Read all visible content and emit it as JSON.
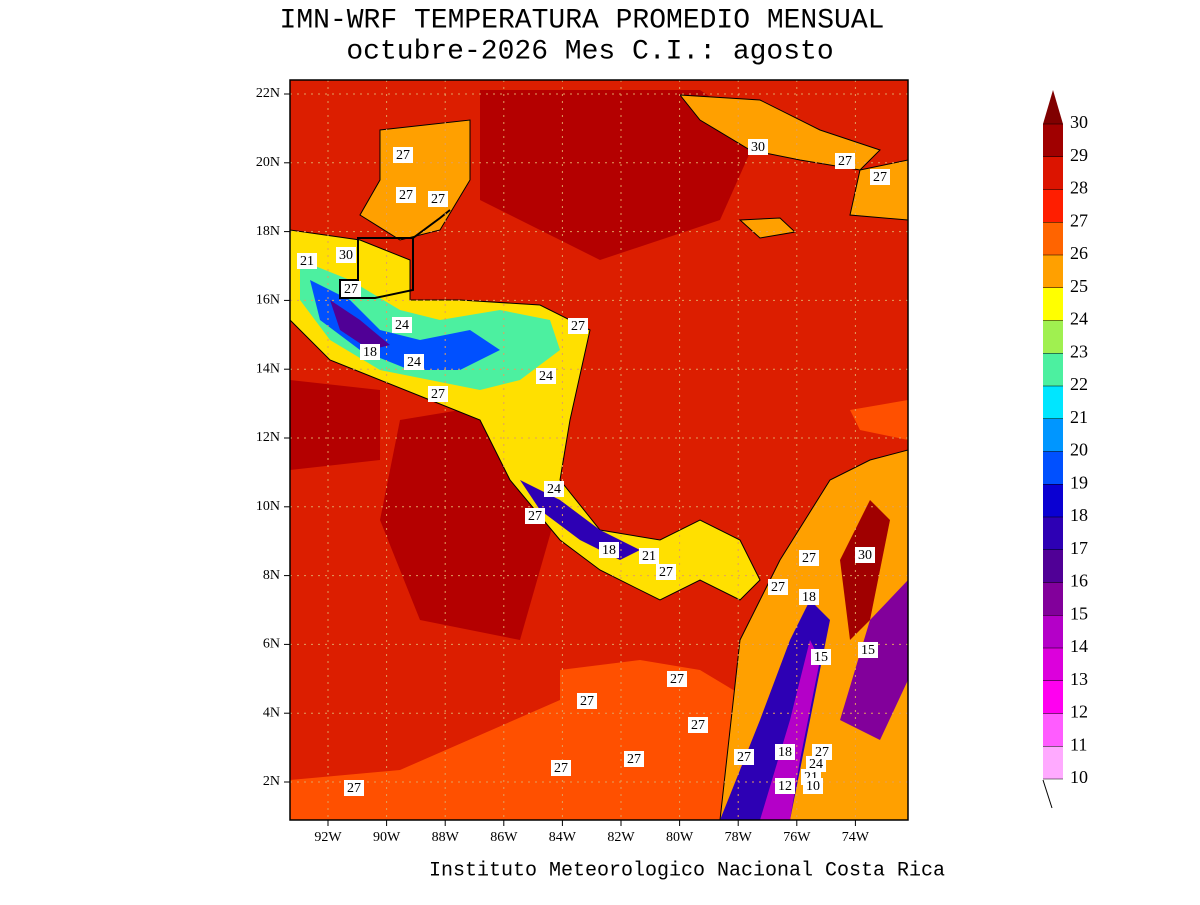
{
  "title": "IMN-WRF  TEMPERATURA PROMEDIO MENSUAL",
  "subtitle": "octubre-2026 Mes C.I.: agosto",
  "footer": "Instituto Meteorologico Nacional Costa Rica",
  "map": {
    "lon_ticks": [
      {
        "value": -92,
        "label": "92W"
      },
      {
        "value": -90,
        "label": "90W"
      },
      {
        "value": -88,
        "label": "88W"
      },
      {
        "value": -86,
        "label": "86W"
      },
      {
        "value": -84,
        "label": "84W"
      },
      {
        "value": -82,
        "label": "82W"
      },
      {
        "value": -80,
        "label": "80W"
      },
      {
        "value": -78,
        "label": "78W"
      },
      {
        "value": -76,
        "label": "76W"
      },
      {
        "value": -74,
        "label": "74W"
      }
    ],
    "lat_ticks": [
      {
        "value": 22,
        "label": "22N"
      },
      {
        "value": 20,
        "label": "20N"
      },
      {
        "value": 18,
        "label": "18N"
      },
      {
        "value": 16,
        "label": "16N"
      },
      {
        "value": 14,
        "label": "14N"
      },
      {
        "value": 12,
        "label": "12N"
      },
      {
        "value": 10,
        "label": "10N"
      },
      {
        "value": 8,
        "label": "8N"
      },
      {
        "value": 6,
        "label": "6N"
      },
      {
        "value": 4,
        "label": "4N"
      },
      {
        "value": 2,
        "label": "2N"
      }
    ],
    "contour_labels": [
      27,
      27,
      27,
      30,
      27,
      27,
      21,
      30,
      27,
      24,
      27,
      18,
      24,
      24,
      27,
      24,
      27,
      18,
      21,
      27,
      27,
      30,
      27,
      18,
      15,
      15,
      27,
      27,
      27,
      27,
      27,
      27,
      27,
      18,
      27,
      24,
      21,
      12,
      10
    ]
  },
  "colorbar": {
    "levels": [
      10,
      11,
      12,
      13,
      14,
      15,
      16,
      17,
      18,
      19,
      20,
      21,
      22,
      23,
      24,
      25,
      26,
      27,
      28,
      29,
      30
    ],
    "colors": [
      "#ffaaff",
      "#ff5cff",
      "#ff00f0",
      "#dc00dc",
      "#b400c8",
      "#82009b",
      "#500096",
      "#2d00b4",
      "#0a00d2",
      "#0050ff",
      "#0096ff",
      "#00e6ff",
      "#4cf0a0",
      "#a0f050",
      "#ffff00",
      "#ffa000",
      "#ff6400",
      "#ff1e00",
      "#dc1400",
      "#a00000"
    ],
    "over_color": "#800000"
  }
}
